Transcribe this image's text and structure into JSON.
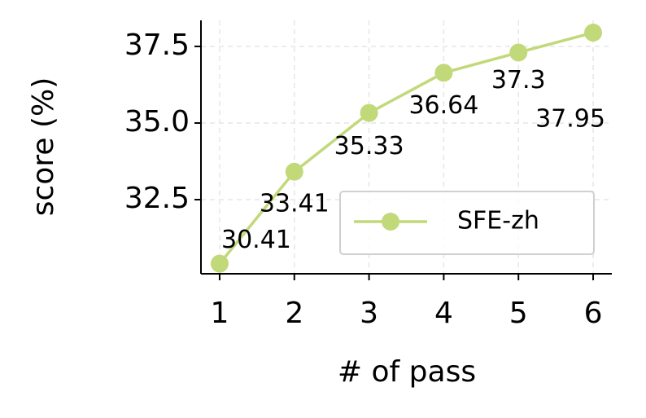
{
  "chart_data": {
    "type": "line",
    "x_label": "# of pass",
    "y_label": "score (%)",
    "x": [
      1,
      2,
      3,
      4,
      5,
      6
    ],
    "series": [
      {
        "name": "SFE-zh",
        "color": "#c2d97a",
        "values": [
          30.41,
          33.41,
          35.33,
          36.64,
          37.3,
          37.95
        ]
      }
    ],
    "xlim": [
      0.75,
      6.25
    ],
    "xticks": [
      1,
      2,
      3,
      4,
      5,
      6
    ],
    "ylim": [
      30.08,
      38.35
    ],
    "yticks": [
      {
        "value": 32.5,
        "label": "32.5"
      },
      {
        "value": 35,
        "label": "35.0"
      },
      {
        "value": 37.5,
        "label": "37.5"
      }
    ],
    "grid": true,
    "legend": "lower right"
  }
}
